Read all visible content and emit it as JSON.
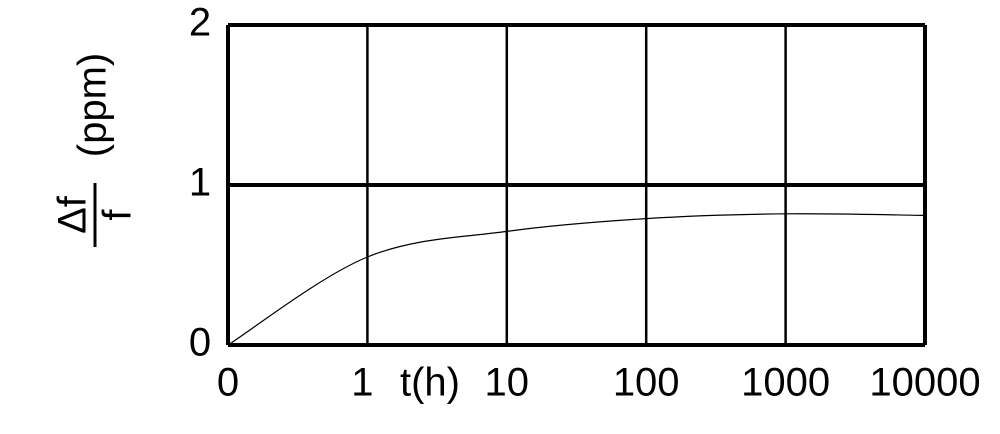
{
  "chart_data": {
    "type": "line",
    "categories": [
      "0",
      "1",
      "10",
      "100",
      "1000",
      "10000"
    ],
    "series": [
      {
        "color": "#000000",
        "values": [
          0,
          0.55,
          0.71,
          0.79,
          0.82,
          0.81
        ]
      }
    ],
    "xlabel": "t(h)",
    "ylabel": {
      "numerator": "Δf",
      "denominator": "f",
      "unit": "(ppm)"
    },
    "ylim": [
      0,
      2
    ],
    "yticks": [
      0,
      1,
      2
    ],
    "grid": true
  }
}
